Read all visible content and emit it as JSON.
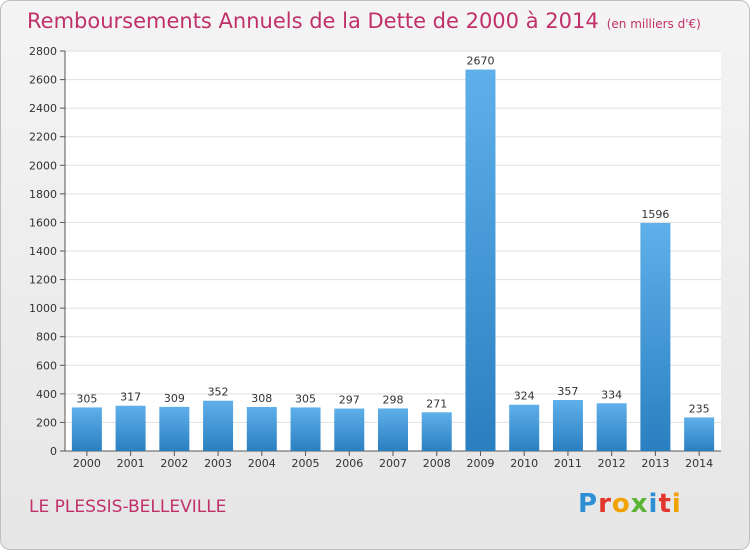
{
  "header": {
    "title": "Remboursements Annuels de la Dette de 2000 à 2014",
    "unit": "(en milliers d'€)"
  },
  "footer": {
    "city": "LE PLESSIS-BELLEVILLE",
    "logo": "Proxiti"
  },
  "colors": {
    "bar_top": "#5fb0ea",
    "bar_bottom": "#2a7fc0",
    "accent": "#c0306a"
  },
  "chart_data": {
    "type": "bar",
    "title": "Remboursements Annuels de la Dette de 2000 à 2014",
    "xlabel": "",
    "ylabel": "",
    "categories": [
      "2000",
      "2001",
      "2002",
      "2003",
      "2004",
      "2005",
      "2006",
      "2007",
      "2008",
      "2009",
      "2010",
      "2011",
      "2012",
      "2013",
      "2014"
    ],
    "values": [
      305,
      317,
      309,
      352,
      308,
      305,
      297,
      298,
      271,
      2670,
      324,
      357,
      334,
      1596,
      235
    ],
    "ylim": [
      0,
      2800
    ],
    "yticks": [
      0,
      200,
      400,
      600,
      800,
      1000,
      1200,
      1400,
      1600,
      1800,
      2000,
      2200,
      2400,
      2600,
      2800
    ],
    "grid": true,
    "legend": "none"
  }
}
